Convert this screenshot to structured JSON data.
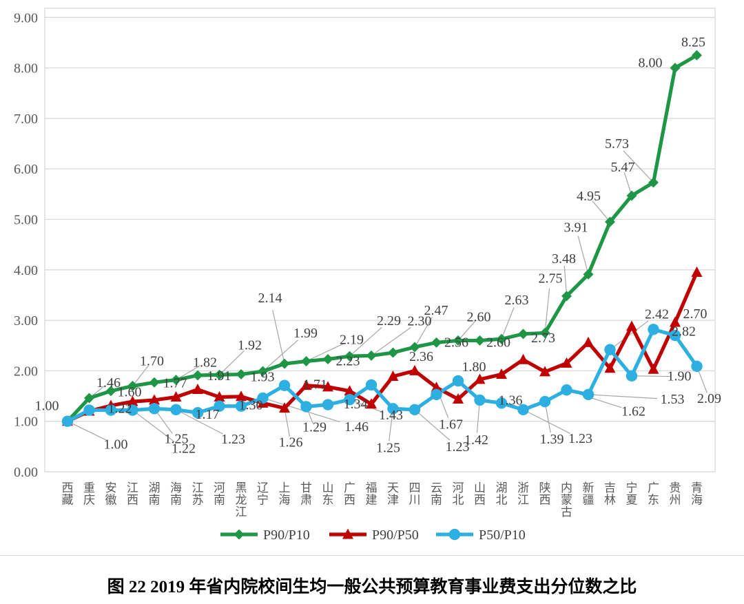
{
  "caption": "图 22  2019 年省内院校间生均一般公共预算教育事业费支出分位数之比",
  "colors": {
    "green": "#1e9646",
    "red": "#c00000",
    "blue": "#2dafe1",
    "grid": "#d9d9d9",
    "axis_text": "#595959",
    "label_text": "#3f3f3f",
    "leader": "#a6a6a6"
  },
  "y_axis": {
    "tick_labels": [
      "0.00",
      "1.00",
      "2.00",
      "3.00",
      "4.00",
      "5.00",
      "6.00",
      "7.00",
      "8.00",
      "9.00"
    ]
  },
  "legend": [
    {
      "label": "P90/P10",
      "marker": "diamond",
      "color": "#1e9646"
    },
    {
      "label": "P90/P50",
      "marker": "triangle",
      "color": "#c00000"
    },
    {
      "label": "P50/P10",
      "marker": "circle",
      "color": "#2dafe1"
    }
  ],
  "chart_data": {
    "type": "line",
    "title": "图 22  2019 年省内院校间生均一般公共预算教育事业费支出分位数之比",
    "ylim": [
      0,
      9
    ],
    "ytick_step": 1.0,
    "grid": true,
    "legend_position": "bottom",
    "categories": [
      "西藏",
      "重庆",
      "安徽",
      "江西",
      "湖南",
      "海南",
      "江苏",
      "河南",
      "黑龙江",
      "辽宁",
      "上海",
      "甘肃",
      "山东",
      "广西",
      "福建",
      "天津",
      "四川",
      "云南",
      "河北",
      "山西",
      "湖北",
      "浙江",
      "陕西",
      "内蒙古",
      "新疆",
      "吉林",
      "宁夏",
      "广东",
      "贵州",
      "青海"
    ],
    "series": [
      {
        "name": "P90/P10",
        "marker": "diamond",
        "color": "#1e9646",
        "values": [
          1.0,
          1.46,
          1.6,
          1.7,
          1.77,
          1.82,
          1.91,
          1.92,
          1.93,
          1.99,
          2.14,
          2.19,
          2.23,
          2.29,
          2.3,
          2.36,
          2.47,
          2.56,
          2.6,
          2.6,
          2.63,
          2.73,
          2.75,
          3.48,
          3.91,
          4.95,
          5.47,
          5.73,
          8.0,
          8.25
        ],
        "labels": [
          [
            "1.00",
            -30,
            -22,
            0
          ],
          [
            "1.46",
            28,
            -22,
            1
          ],
          [
            "1.60",
            27,
            2,
            0
          ],
          [
            "1.70",
            28,
            -36,
            1
          ],
          [
            "1.77",
            30,
            1,
            0
          ],
          [
            "1.82",
            42,
            -25,
            1
          ],
          [
            "1.91",
            31,
            1,
            0
          ],
          [
            "1.92",
            44,
            -43,
            1
          ],
          [
            "1.93",
            31,
            4,
            0
          ],
          [
            "1.99",
            62,
            -55,
            1
          ],
          [
            "2.14",
            -21,
            -95,
            1
          ],
          [
            "2.19",
            66,
            -31,
            1
          ],
          [
            "2.23",
            29,
            3,
            0
          ],
          [
            "2.29",
            57,
            -51,
            1
          ],
          [
            "2.30",
            70,
            -50,
            1
          ],
          [
            "2.36",
            41,
            6,
            0
          ],
          [
            "2.47",
            31,
            -53,
            1
          ],
          [
            "2.56",
            29,
            0,
            0
          ],
          [
            "2.60",
            30,
            -34,
            1
          ],
          [
            "2.60",
            27,
            3,
            0
          ],
          [
            "2.63",
            22,
            -56,
            1
          ],
          [
            "2.73",
            29,
            6,
            0
          ],
          [
            "2.75",
            8,
            -79,
            1
          ],
          [
            "3.48",
            -4,
            -54,
            1
          ],
          [
            "3.91",
            -18,
            -68,
            1
          ],
          [
            "4.95",
            -31,
            -37,
            1
          ],
          [
            "5.47",
            -13,
            -41,
            1
          ],
          [
            "5.73",
            -53,
            -56,
            1
          ],
          [
            "8.00",
            -36,
            -7,
            0
          ],
          [
            "8.25",
            -5,
            -19,
            0
          ]
        ]
      },
      {
        "name": "P90/P50",
        "marker": "triangle",
        "color": "#c00000",
        "values": [
          1.0,
          1.2,
          1.31,
          1.39,
          1.42,
          1.48,
          1.63,
          1.48,
          1.49,
          1.36,
          1.26,
          1.71,
          1.68,
          1.6,
          1.34,
          1.89,
          2.0,
          1.67,
          1.44,
          1.83,
          1.93,
          2.22,
          1.98,
          2.15,
          2.56,
          2.05,
          2.88,
          2.03,
          2.96,
          3.95
        ],
        "labels": [
          null,
          null,
          null,
          null,
          null,
          null,
          null,
          null,
          null,
          null,
          [
            "1.26",
            9,
            50,
            1
          ],
          [
            "1.71",
            13,
            -1,
            0
          ],
          null,
          null,
          [
            "1.34",
            -23,
            0,
            0
          ],
          null,
          null,
          [
            "1.67",
            21,
            54,
            1
          ],
          null,
          null,
          null,
          null,
          null,
          null,
          null,
          null,
          null,
          null,
          null,
          null
        ]
      },
      {
        "name": "P50/P10",
        "marker": "circle",
        "color": "#2dafe1",
        "values": [
          1.0,
          1.22,
          1.22,
          1.22,
          1.25,
          1.23,
          1.17,
          1.3,
          1.3,
          1.46,
          1.71,
          1.29,
          1.33,
          1.43,
          1.72,
          1.25,
          1.23,
          1.53,
          1.8,
          1.42,
          1.36,
          1.23,
          1.39,
          1.62,
          1.53,
          2.42,
          1.9,
          2.82,
          2.7,
          2.09
        ],
        "labels": [
          [
            "1.00",
            70,
            34,
            1
          ],
          null,
          [
            "1.22",
            13,
            -2,
            0
          ],
          [
            "1.22",
            74,
            56,
            1
          ],
          [
            "1.25",
            32,
            44,
            1
          ],
          [
            "1.23",
            83,
            43,
            1
          ],
          [
            "1.17",
            14,
            3,
            0
          ],
          null,
          [
            "1.30",
            14,
            -1,
            0
          ],
          [
            "1.46",
            136,
            42,
            1
          ],
          null,
          [
            "1.29",
            12,
            30,
            1
          ],
          null,
          [
            "1.43",
            60,
            23,
            1
          ],
          null,
          [
            "1.25",
            -7,
            57,
            1
          ],
          [
            "1.23",
            62,
            54,
            1
          ],
          null,
          [
            "1.80",
            23,
            -20,
            0
          ],
          [
            "1.42",
            -5,
            58,
            1
          ],
          [
            "1.36",
            13,
            -4,
            0
          ],
          [
            "1.23",
            83,
            42,
            1
          ],
          [
            "1.39",
            10,
            55,
            1
          ],
          [
            "1.62",
            97,
            31,
            1
          ],
          [
            "1.53",
            122,
            7,
            1
          ],
          [
            "2.42",
            68,
            -51,
            1
          ],
          [
            "1.90",
            69,
            1,
            1
          ],
          [
            "2.82",
            44,
            3,
            0
          ],
          [
            "2.70",
            29,
            -31,
            0
          ],
          [
            "2.09",
            18,
            47,
            1
          ]
        ]
      }
    ]
  }
}
